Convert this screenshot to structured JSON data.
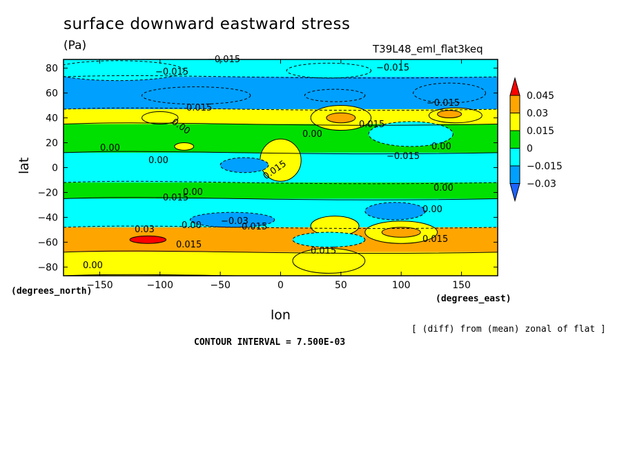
{
  "chart_data": {
    "type": "heatmap",
    "title": "surface downward eastward stress",
    "units": "(Pa)",
    "run_label": "T39L48_eml_flat3keq",
    "xlabel": "lon",
    "ylabel": "lat",
    "x_unit": "(degrees_east)",
    "y_unit": "(degrees_north)",
    "xlim": [
      -180,
      180
    ],
    "ylim": [
      -87,
      87
    ],
    "x_ticks": [
      -150,
      -100,
      -50,
      0,
      50,
      100,
      150
    ],
    "y_ticks": [
      80,
      60,
      40,
      20,
      0,
      -20,
      -40,
      -60,
      -80
    ],
    "note": "[ (diff) from (mean) zonal of flat ]",
    "contour_interval": "CONTOUR INTERVAL = 7.500E-03",
    "colorbar": {
      "labels": [
        "0.045",
        "0.03",
        "0.015",
        "0",
        "−0.015",
        "−0.03"
      ],
      "colors": [
        "#ff0000",
        "#ffa500",
        "#ffff00",
        "#00e000",
        "#00ffff",
        "#00a0ff",
        "#1e64ff"
      ]
    },
    "contour_labels": [
      "-0.015",
      "-0.015",
      "-0.015",
      "-0.015",
      "-0.015",
      "-0.015",
      "0.015",
      "0.015",
      "0.015",
      "0.015",
      "0.015",
      "0.015",
      "0.015",
      "0.00",
      "0.00",
      "0.00",
      "0.00",
      "0.00",
      "0.00",
      "0.00",
      "0.00",
      "0.00",
      "0.00",
      "-0.03",
      "0.03"
    ],
    "bands": [
      {
        "lat": [
          73,
          87
        ],
        "value": -0.015
      },
      {
        "lat": [
          47,
          73
        ],
        "value": -0.03
      },
      {
        "lat": [
          35,
          47
        ],
        "value": 0.015
      },
      {
        "lat": [
          12,
          35
        ],
        "value": 0
      },
      {
        "lat": [
          -12,
          12
        ],
        "value": -0.015
      },
      {
        "lat": [
          -25,
          -12
        ],
        "value": 0
      },
      {
        "lat": [
          -48,
          -25
        ],
        "value": -0.015
      },
      {
        "lat": [
          -68,
          -48
        ],
        "value": 0.03
      },
      {
        "lat": [
          -87,
          -68
        ],
        "value": 0.015
      }
    ],
    "features": [
      {
        "lon": -135,
        "lat": 78,
        "rx": 55,
        "ry": 8,
        "value": -0.015
      },
      {
        "lon": 40,
        "lat": 78,
        "rx": 35,
        "ry": 6,
        "value": -0.015
      },
      {
        "lon": -70,
        "lat": 58,
        "rx": 45,
        "ry": 7,
        "value": -0.03
      },
      {
        "lon": 140,
        "lat": 60,
        "rx": 30,
        "ry": 8,
        "value": -0.03
      },
      {
        "lon": 45,
        "lat": 58,
        "rx": 25,
        "ry": 5,
        "value": -0.03
      },
      {
        "lon": -100,
        "lat": 40,
        "rx": 15,
        "ry": 5,
        "value": 0.015
      },
      {
        "lon": 50,
        "lat": 40,
        "rx": 25,
        "ry": 10,
        "value": 0.015
      },
      {
        "lon": 50,
        "lat": 40,
        "rx": 12,
        "ry": 4,
        "value": 0.03
      },
      {
        "lon": 145,
        "lat": 42,
        "rx": 22,
        "ry": 6,
        "value": 0.015
      },
      {
        "lon": 140,
        "lat": 43,
        "rx": 10,
        "ry": 3,
        "value": 0.03
      },
      {
        "lon": -80,
        "lat": 17,
        "rx": 8,
        "ry": 3,
        "value": 0.015
      },
      {
        "lon": 108,
        "lat": 27,
        "rx": 35,
        "ry": 10,
        "value": -0.015
      },
      {
        "lon": 0,
        "lat": 6,
        "rx": 17,
        "ry": 17,
        "value": 0.015
      },
      {
        "lon": -30,
        "lat": 2,
        "rx": 20,
        "ry": 6,
        "value": -0.03
      },
      {
        "lon": -40,
        "lat": -42,
        "rx": 35,
        "ry": 6,
        "value": -0.03
      },
      {
        "lon": 95,
        "lat": -35,
        "rx": 25,
        "ry": 7,
        "value": -0.03
      },
      {
        "lon": 45,
        "lat": -47,
        "rx": 20,
        "ry": 8,
        "value": 0.015
      },
      {
        "lon": 100,
        "lat": -52,
        "rx": 30,
        "ry": 9,
        "value": 0.015
      },
      {
        "lon": 100,
        "lat": -52,
        "rx": 16,
        "ry": 4,
        "value": 0.03
      },
      {
        "lon": -110,
        "lat": -58,
        "rx": 15,
        "ry": 3,
        "value": 0.045
      },
      {
        "lon": 40,
        "lat": -58,
        "rx": 30,
        "ry": 6,
        "value": -0.015
      },
      {
        "lon": 40,
        "lat": -75,
        "rx": 30,
        "ry": 10,
        "value": 0.015
      }
    ]
  }
}
